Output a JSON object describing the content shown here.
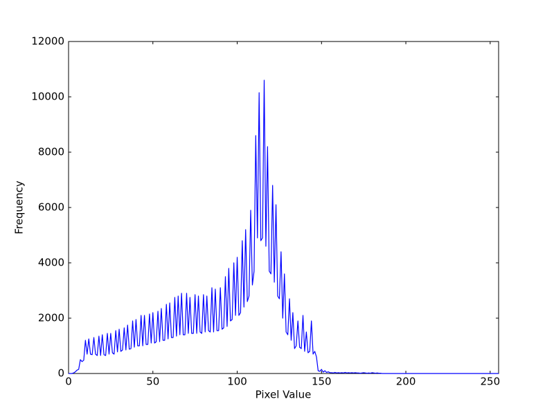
{
  "chart_data": {
    "type": "line",
    "x_label": "Pixel Value",
    "y_label": "Frequency",
    "x": [
      0,
      1,
      2,
      3,
      4,
      5,
      6,
      7,
      8,
      9,
      10,
      11,
      12,
      13,
      14,
      15,
      16,
      17,
      18,
      19,
      20,
      21,
      22,
      23,
      24,
      25,
      26,
      27,
      28,
      29,
      30,
      31,
      32,
      33,
      34,
      35,
      36,
      37,
      38,
      39,
      40,
      41,
      42,
      43,
      44,
      45,
      46,
      47,
      48,
      49,
      50,
      51,
      52,
      53,
      54,
      55,
      56,
      57,
      58,
      59,
      60,
      61,
      62,
      63,
      64,
      65,
      66,
      67,
      68,
      69,
      70,
      71,
      72,
      73,
      74,
      75,
      76,
      77,
      78,
      79,
      80,
      81,
      82,
      83,
      84,
      85,
      86,
      87,
      88,
      89,
      90,
      91,
      92,
      93,
      94,
      95,
      96,
      97,
      98,
      99,
      100,
      101,
      102,
      103,
      104,
      105,
      106,
      107,
      108,
      109,
      110,
      111,
      112,
      113,
      114,
      115,
      116,
      117,
      118,
      119,
      120,
      121,
      122,
      123,
      124,
      125,
      126,
      127,
      128,
      129,
      130,
      131,
      132,
      133,
      134,
      135,
      136,
      137,
      138,
      139,
      140,
      141,
      142,
      143,
      144,
      145,
      146,
      147,
      148,
      149,
      150,
      151,
      152,
      153,
      154,
      155,
      156,
      157,
      158,
      159,
      160,
      161,
      162,
      163,
      164,
      165,
      166,
      167,
      168,
      169,
      170,
      171,
      172,
      173,
      174,
      175,
      176,
      177,
      178,
      179,
      180,
      181,
      182,
      183,
      184,
      185,
      186,
      187,
      188,
      189,
      190,
      191,
      192,
      193,
      194,
      195,
      196,
      197,
      198,
      199,
      200,
      201,
      202,
      203,
      204,
      205,
      206,
      207,
      208,
      209,
      210,
      211,
      212,
      213,
      214,
      215,
      216,
      217,
      218,
      219,
      220,
      221,
      222,
      223,
      224,
      225,
      226,
      227,
      228,
      229,
      230,
      231,
      232,
      233,
      234,
      235,
      236,
      237,
      238,
      239,
      240,
      241,
      242,
      243,
      244,
      245,
      246,
      247,
      248,
      249,
      250,
      251,
      252,
      253,
      254,
      255
    ],
    "series": [
      {
        "color": "#0000ff",
        "values": [
          0,
          0,
          0,
          20,
          60,
          120,
          150,
          500,
          430,
          480,
          1200,
          700,
          1250,
          700,
          680,
          1300,
          700,
          650,
          1350,
          650,
          1400,
          680,
          650,
          1450,
          700,
          1450,
          750,
          700,
          1550,
          780,
          1600,
          800,
          850,
          1650,
          850,
          1750,
          880,
          900,
          1900,
          950,
          1950,
          1000,
          1000,
          2100,
          1000,
          2100,
          1050,
          1050,
          2150,
          1100,
          2200,
          1100,
          1150,
          2250,
          1150,
          2350,
          1200,
          1200,
          2500,
          1250,
          2550,
          1300,
          1300,
          2750,
          1350,
          2800,
          1400,
          2900,
          1400,
          1400,
          2900,
          1450,
          2750,
          1450,
          1450,
          2850,
          1450,
          2800,
          1500,
          1450,
          2850,
          1500,
          2800,
          1550,
          1500,
          3100,
          1500,
          3050,
          1550,
          1550,
          3100,
          1600,
          1650,
          3500,
          1700,
          3800,
          1900,
          1950,
          4000,
          2100,
          4200,
          2100,
          2200,
          4800,
          2400,
          5200,
          2600,
          2800,
          5900,
          3200,
          3700,
          8600,
          4900,
          10150,
          4800,
          4900,
          10600,
          4600,
          8200,
          3700,
          3600,
          6800,
          3300,
          6100,
          2800,
          2700,
          4400,
          2000,
          3600,
          1500,
          1400,
          2700,
          1200,
          2200,
          900,
          1000,
          1900,
          950,
          900,
          2100,
          800,
          1500,
          750,
          800,
          1900,
          700,
          800,
          600,
          100,
          80,
          150,
          50,
          100,
          40,
          60,
          30,
          30,
          20,
          40,
          20,
          30,
          20,
          30,
          20,
          40,
          20,
          30,
          20,
          30,
          20,
          30,
          20,
          20,
          10,
          20,
          30,
          20,
          10,
          20,
          10,
          30,
          20,
          10,
          20,
          10,
          10,
          0,
          0,
          0,
          0,
          0,
          0,
          0,
          0,
          0,
          0,
          0,
          0,
          0,
          0,
          0,
          0,
          0,
          0,
          0,
          0,
          0,
          0,
          0,
          0,
          0,
          0,
          0,
          0,
          0,
          0,
          0,
          0,
          0,
          0,
          0,
          0,
          0,
          0,
          0,
          0,
          0,
          0,
          0,
          0,
          0,
          0,
          0,
          0,
          0,
          0,
          0,
          0,
          0,
          0,
          0,
          0,
          0,
          0,
          0,
          0,
          0,
          0,
          0,
          0,
          0,
          0,
          0,
          0,
          0,
          0
        ]
      }
    ],
    "xlim": [
      0,
      255
    ],
    "xticks": [
      0,
      50,
      100,
      150,
      200,
      250
    ],
    "ylim": [
      0,
      12000
    ],
    "yticks": [
      0,
      2000,
      4000,
      6000,
      8000,
      10000,
      12000
    ]
  }
}
